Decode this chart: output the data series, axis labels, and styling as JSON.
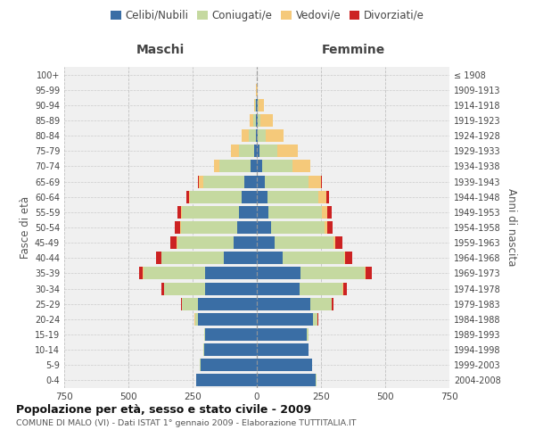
{
  "age_groups": [
    "0-4",
    "5-9",
    "10-14",
    "15-19",
    "20-24",
    "25-29",
    "30-34",
    "35-39",
    "40-44",
    "45-49",
    "50-54",
    "55-59",
    "60-64",
    "65-69",
    "70-74",
    "75-79",
    "80-84",
    "85-89",
    "90-94",
    "95-99",
    "100+"
  ],
  "birth_years": [
    "2004-2008",
    "1999-2003",
    "1994-1998",
    "1989-1993",
    "1984-1988",
    "1979-1983",
    "1974-1978",
    "1969-1973",
    "1964-1968",
    "1959-1963",
    "1954-1958",
    "1949-1953",
    "1944-1948",
    "1939-1943",
    "1934-1938",
    "1929-1933",
    "1924-1928",
    "1919-1923",
    "1914-1918",
    "1909-1913",
    "≤ 1908"
  ],
  "maschi": {
    "celibi": [
      235,
      220,
      205,
      200,
      230,
      230,
      200,
      200,
      130,
      90,
      75,
      70,
      60,
      50,
      25,
      10,
      5,
      3,
      2,
      0,
      0
    ],
    "coniugati": [
      2,
      2,
      2,
      5,
      10,
      60,
      160,
      240,
      240,
      220,
      220,
      220,
      200,
      160,
      120,
      60,
      25,
      10,
      5,
      1,
      0
    ],
    "vedovi": [
      0,
      0,
      0,
      0,
      2,
      2,
      2,
      3,
      3,
      3,
      5,
      5,
      5,
      15,
      20,
      30,
      30,
      15,
      5,
      1,
      0
    ],
    "divorziati": [
      0,
      0,
      0,
      0,
      2,
      3,
      10,
      15,
      20,
      25,
      20,
      15,
      10,
      5,
      0,
      0,
      0,
      0,
      0,
      0,
      0
    ]
  },
  "femmine": {
    "nubili": [
      230,
      215,
      200,
      195,
      220,
      210,
      165,
      170,
      100,
      70,
      55,
      45,
      40,
      30,
      20,
      10,
      5,
      3,
      2,
      0,
      0
    ],
    "coniugate": [
      2,
      2,
      2,
      5,
      15,
      80,
      170,
      250,
      240,
      230,
      210,
      210,
      200,
      170,
      120,
      70,
      30,
      10,
      5,
      1,
      0
    ],
    "vedove": [
      0,
      0,
      0,
      0,
      1,
      2,
      2,
      3,
      3,
      5,
      10,
      20,
      30,
      50,
      70,
      80,
      70,
      50,
      20,
      3,
      0
    ],
    "divorziate": [
      0,
      0,
      0,
      0,
      2,
      5,
      15,
      25,
      30,
      30,
      20,
      15,
      10,
      5,
      0,
      0,
      0,
      0,
      0,
      0,
      0
    ]
  },
  "colors": {
    "celibi_nubili": "#3A6EA5",
    "coniugati": "#C5D9A0",
    "vedovi": "#F5C97A",
    "divorziati": "#CC2222"
  },
  "title": "Popolazione per età, sesso e stato civile - 2009",
  "subtitle": "COMUNE DI MALO (VI) - Dati ISTAT 1° gennaio 2009 - Elaborazione TUTTITALIA.IT",
  "ylabel_left": "Fasce di età",
  "ylabel_right": "Anni di nascita",
  "xlabel_maschi": "Maschi",
  "xlabel_femmine": "Femmine",
  "xlim": 750,
  "bg_color": "#ffffff",
  "grid_color": "#bbbbbb"
}
